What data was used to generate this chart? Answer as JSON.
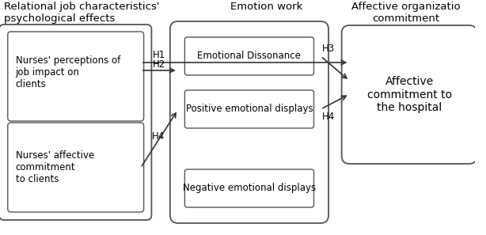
{
  "bg_color": "#ffffff",
  "col1_header": "Relational job characteristics'\npsychological effects",
  "col2_header": "Emotion work",
  "col3_header": "Affective organizatio\ncommitment",
  "box1_text": "Nurses' perceptions of\njob impact on\nclients",
  "box2_text": "Nurses' affective\ncommitment\nto clients",
  "inner1_text": "Emotional Dissonance",
  "inner2_text": "Positive emotional displays",
  "inner3_text": "Negative emotional displays",
  "right_box_text": "Affective\ncommitment to\nthe hospital",
  "arrow_color": "#333333",
  "box_edge_color": "#555555",
  "font_size": 8.5,
  "header_font_size": 9.5,
  "lw_outer": 1.3,
  "lw_inner": 1.0
}
